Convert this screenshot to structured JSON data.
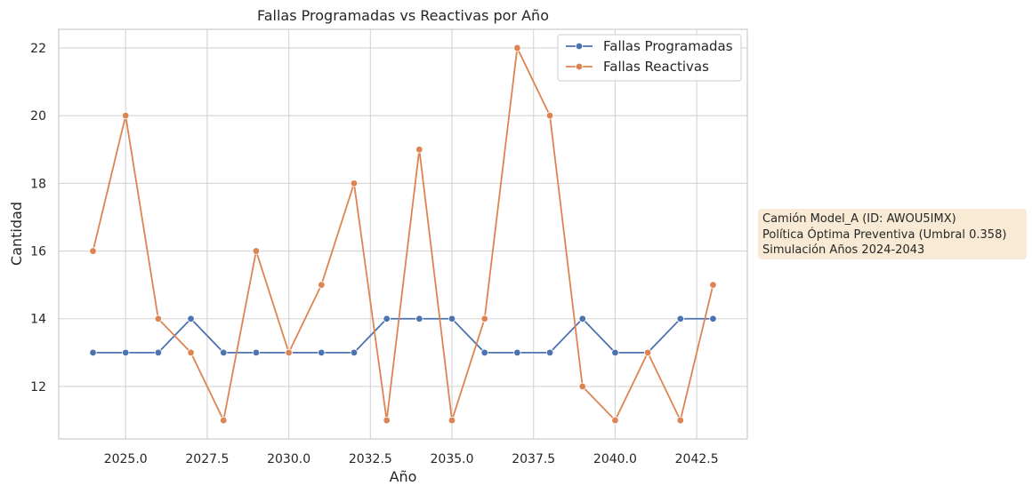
{
  "chart_data": {
    "type": "line",
    "title": "Fallas Programadas vs Reactivas por Año",
    "xlabel": "Año",
    "ylabel": "Cantidad",
    "x": [
      2024,
      2025,
      2026,
      2027,
      2028,
      2029,
      2030,
      2031,
      2032,
      2033,
      2034,
      2035,
      2036,
      2037,
      2038,
      2039,
      2040,
      2041,
      2042,
      2043
    ],
    "xlim": [
      2022.95,
      2044.05
    ],
    "ylim": [
      10.45,
      22.55
    ],
    "x_ticks": [
      2025.0,
      2027.5,
      2030.0,
      2032.5,
      2035.0,
      2037.5,
      2040.0,
      2042.5
    ],
    "x_tick_labels": [
      "2025.0",
      "2027.5",
      "2030.0",
      "2032.5",
      "2035.0",
      "2037.5",
      "2040.0",
      "2042.5"
    ],
    "y_ticks": [
      12,
      14,
      16,
      18,
      20,
      22
    ],
    "y_tick_labels": [
      "12",
      "14",
      "16",
      "18",
      "20",
      "22"
    ],
    "grid": true,
    "legend_position": "top-right",
    "series": [
      {
        "name": "Fallas Programadas",
        "color": "#4c72b0",
        "values": [
          13,
          13,
          13,
          14,
          13,
          13,
          13,
          13,
          13,
          14,
          14,
          14,
          13,
          13,
          13,
          14,
          13,
          13,
          14,
          14
        ]
      },
      {
        "name": "Fallas Reactivas",
        "color": "#dd8452",
        "values": [
          16,
          20,
          14,
          13,
          11,
          16,
          13,
          15,
          18,
          11,
          19,
          11,
          14,
          22,
          20,
          12,
          11,
          13,
          11,
          15
        ]
      }
    ],
    "annotation": {
      "lines": [
        "Camión Model_A (ID: AWOU5IMX)",
        "Política Óptima Preventiva (Umbral 0.358)",
        "Simulación Años 2024-2043"
      ],
      "background": "#f8ead4"
    }
  }
}
